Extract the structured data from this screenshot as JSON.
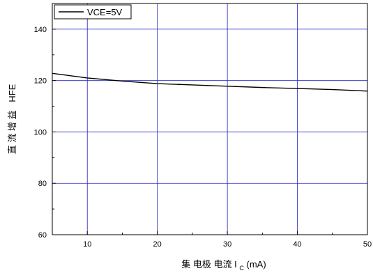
{
  "chart_data": {
    "type": "line",
    "xlabel_main": "集 电极 电流 I",
    "xlabel_sub": "C",
    "xlabel_unit": "(mA)",
    "ylabel_cn": "直 流 增 益",
    "ylabel_en": "HFE",
    "xlim": [
      5,
      50
    ],
    "ylim": [
      60,
      150
    ],
    "x_ticks": [
      10,
      20,
      30,
      40,
      50
    ],
    "y_ticks": [
      60,
      80,
      100,
      120,
      140
    ],
    "grid": true,
    "legend_position": "top-left",
    "colors": {
      "series": "#000000",
      "grid": "#2020c0",
      "axis": "#000000"
    },
    "series": [
      {
        "name": "VCE=5V",
        "x": [
          5,
          10,
          15,
          20,
          25,
          30,
          35,
          40,
          45,
          50
        ],
        "y": [
          122.8,
          121.0,
          119.8,
          118.8,
          118.3,
          117.8,
          117.3,
          116.9,
          116.5,
          115.9
        ]
      }
    ]
  }
}
